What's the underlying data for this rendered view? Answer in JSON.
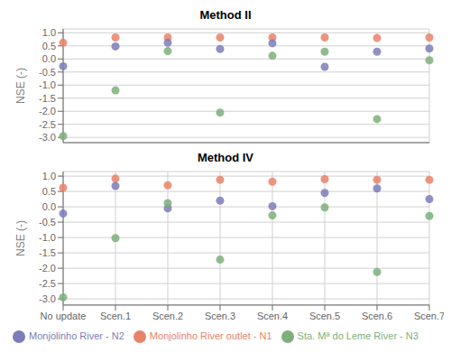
{
  "chart_data": [
    {
      "type": "scatter",
      "title": "Method II",
      "y_label": "NSE (-)",
      "categories": [
        "No update",
        "Scen.1",
        "Scen.2",
        "Scen.3",
        "Scen.4",
        "Scen.5",
        "Scen.6",
        "Scen.7"
      ],
      "series": [
        {
          "name": "Monjolinho River outlet - N1",
          "color": "#E8836A",
          "values": [
            0.62,
            0.82,
            0.82,
            0.82,
            0.82,
            0.82,
            0.8,
            0.82
          ]
        },
        {
          "name": "Monjolinho River - N2",
          "color": "#7B7DB8",
          "values": [
            -0.28,
            0.48,
            0.62,
            0.38,
            0.6,
            -0.3,
            0.28,
            0.4
          ]
        },
        {
          "name": "Sta. Mª do Leme River - N3",
          "color": "#7DAF7A",
          "values": [
            -2.95,
            -1.2,
            0.3,
            -2.05,
            0.12,
            0.28,
            -2.3,
            -0.05
          ]
        }
      ],
      "ylim": [
        -3.2,
        1.15
      ],
      "yticks": [
        {
          "value": 1.0,
          "label": "1.0"
        },
        0.5,
        {
          "value": 0.0,
          "label": "0.0"
        },
        -0.5,
        {
          "value": -1.0,
          "label": "-1.0"
        },
        -1.5,
        {
          "value": -2.0,
          "label": "-2.0"
        },
        -2.5,
        {
          "value": -3.0,
          "label": "-3.0"
        }
      ],
      "grid": true,
      "tick_labels": "y"
    },
    {
      "type": "scatter",
      "title": "Method IV",
      "y_label": "NSE (-)",
      "categories": [
        "No update",
        "Scen.1",
        "Scen.2",
        "Scen.3",
        "Scen.4",
        "Scen.5",
        "Scen.6",
        "Scen.7"
      ],
      "series": [
        {
          "name": "Monjolinho River outlet - N1",
          "color": "#E8836A",
          "values": [
            0.62,
            0.92,
            0.7,
            0.88,
            0.82,
            0.9,
            0.88,
            0.88
          ]
        },
        {
          "name": "Monjolinho River - N2",
          "color": "#7B7DB8",
          "values": [
            -0.22,
            0.68,
            -0.05,
            0.2,
            0.02,
            0.45,
            0.6,
            0.25
          ]
        },
        {
          "name": "Sta. Mª do Leme River - N3",
          "color": "#7DAF7A",
          "values": [
            -2.95,
            -1.02,
            0.12,
            -1.72,
            -0.28,
            -0.02,
            -2.12,
            -0.3
          ]
        }
      ],
      "ylim": [
        -3.2,
        1.15
      ],
      "yticks": [
        {
          "value": 1.0,
          "label": "1.0"
        },
        0.5,
        {
          "value": 0.0,
          "label": "0.0"
        },
        -0.5,
        {
          "value": -1.0,
          "label": "-1.0"
        },
        -1.5,
        {
          "value": -2.0,
          "label": "-2.0"
        },
        -2.5,
        {
          "value": -3.0,
          "label": "-3.0"
        }
      ],
      "grid": true,
      "legend": "bottom"
    }
  ]
}
